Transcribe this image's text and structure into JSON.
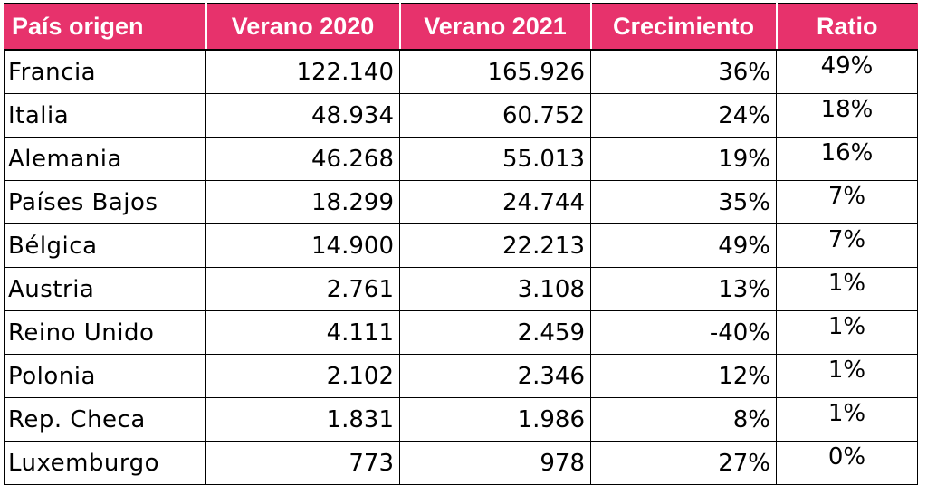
{
  "table": {
    "headers": [
      "País origen",
      "Verano 2020",
      "Verano 2021",
      "Crecimiento",
      "Ratio"
    ],
    "rows": [
      {
        "pais": "Francia",
        "v2020": "122.140",
        "v2021": "165.926",
        "crecimiento": "36%",
        "ratio": "49%"
      },
      {
        "pais": "Italia",
        "v2020": "48.934",
        "v2021": "60.752",
        "crecimiento": "24%",
        "ratio": "18%"
      },
      {
        "pais": "Alemania",
        "v2020": "46.268",
        "v2021": "55.013",
        "crecimiento": "19%",
        "ratio": "16%"
      },
      {
        "pais": "Países Bajos",
        "v2020": "18.299",
        "v2021": "24.744",
        "crecimiento": "35%",
        "ratio": "7%"
      },
      {
        "pais": "Bélgica",
        "v2020": "14.900",
        "v2021": "22.213",
        "crecimiento": "49%",
        "ratio": "7%"
      },
      {
        "pais": "Austria",
        "v2020": "2.761",
        "v2021": "3.108",
        "crecimiento": "13%",
        "ratio": "1%"
      },
      {
        "pais": "Reino Unido",
        "v2020": "4.111",
        "v2021": "2.459",
        "crecimiento": "-40%",
        "ratio": "1%"
      },
      {
        "pais": "Polonia",
        "v2020": "2.102",
        "v2021": "2.346",
        "crecimiento": "12%",
        "ratio": "1%"
      },
      {
        "pais": "Rep. Checa",
        "v2020": "1.831",
        "v2021": "1.986",
        "crecimiento": "8%",
        "ratio": "1%"
      },
      {
        "pais": "Luxemburgo",
        "v2020": "773",
        "v2021": "978",
        "crecimiento": "27%",
        "ratio": "0%"
      }
    ]
  },
  "colors": {
    "header_bg": "#e7326c",
    "header_text": "#ffffff"
  }
}
